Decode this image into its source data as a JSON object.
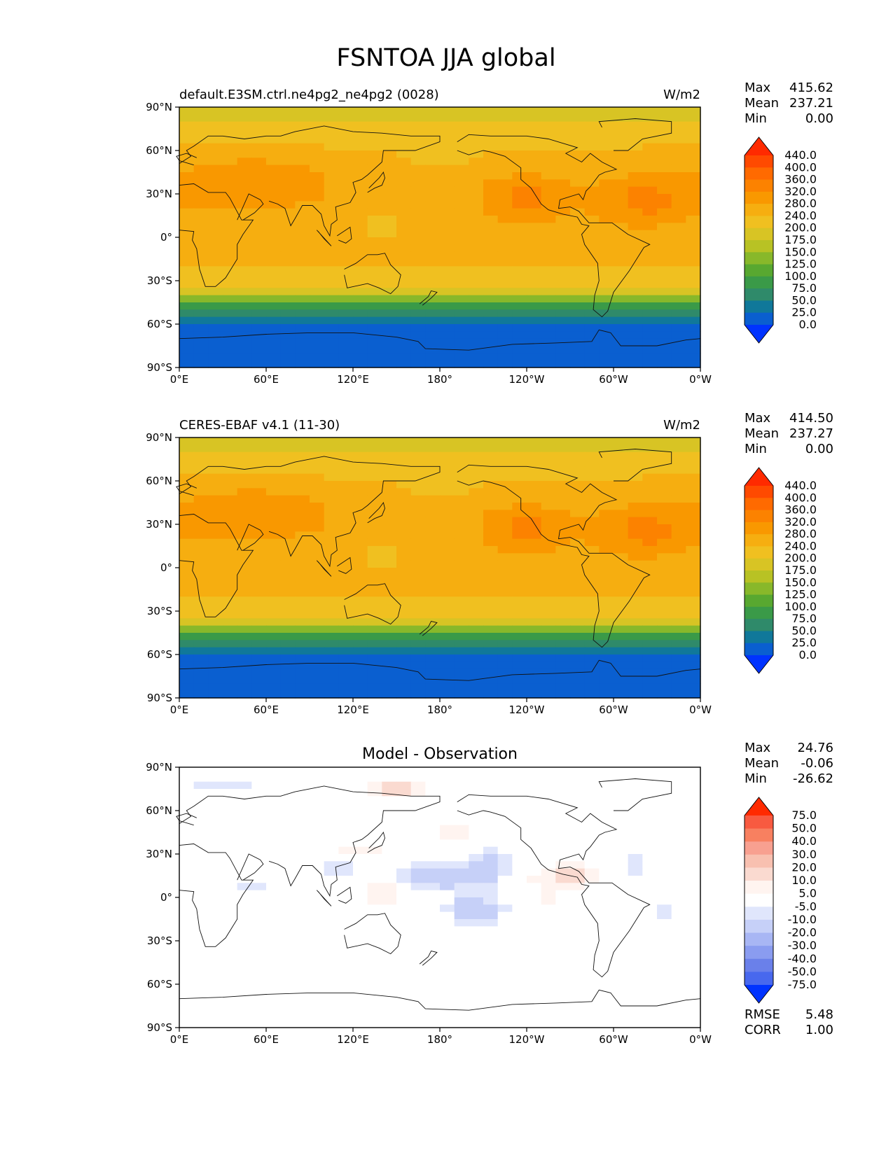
{
  "figure": {
    "title": "FSNTOA JJA global"
  },
  "chart_data": [
    {
      "type": "heatmap",
      "title": "",
      "left_label": "default.E3SM.ctrl.ne4pg2_ne4pg2 (0028)",
      "units": "W/m2",
      "xlim": [
        0,
        360
      ],
      "ylim": [
        -90,
        90
      ],
      "x_ticks": [
        "0°E",
        "60°E",
        "120°E",
        "180°",
        "120°W",
        "60°W",
        "0°W"
      ],
      "y_ticks": [
        "90°N",
        "60°N",
        "30°N",
        "0°",
        "30°S",
        "60°S",
        "90°S"
      ],
      "stats": [
        {
          "label": "Max",
          "value": "415.62"
        },
        {
          "label": "Mean",
          "value": "237.21"
        },
        {
          "label": "Min",
          "value": "0.00"
        }
      ],
      "colorbar": {
        "levels": [
          "440.0",
          "400.0",
          "360.0",
          "320.0",
          "280.0",
          "240.0",
          "200.0",
          "175.0",
          "150.0",
          "125.0",
          "100.0",
          "75.0",
          "50.0",
          "25.0",
          "0.0"
        ],
        "colors": [
          "#ff2a00",
          "#ff4a00",
          "#ff6a00",
          "#fc8200",
          "#f99800",
          "#f6ae10",
          "#f0c020",
          "#d8c424",
          "#b8c224",
          "#88b82a",
          "#58a830",
          "#3a9a48",
          "#2f8a6a",
          "#10789a",
          "#0a5fd0",
          "#0033ff"
        ]
      },
      "field": "reference",
      "amplitude": 1.0
    },
    {
      "type": "heatmap",
      "title": "",
      "left_label": "CERES-EBAF v4.1 (11-30)",
      "units": "W/m2",
      "xlim": [
        0,
        360
      ],
      "ylim": [
        -90,
        90
      ],
      "x_ticks": [
        "0°E",
        "60°E",
        "120°E",
        "180°",
        "120°W",
        "60°W",
        "0°W"
      ],
      "y_ticks": [
        "90°N",
        "60°N",
        "30°N",
        "0°",
        "30°S",
        "60°S",
        "90°S"
      ],
      "stats": [
        {
          "label": "Max",
          "value": "414.50"
        },
        {
          "label": "Mean",
          "value": "237.27"
        },
        {
          "label": "Min",
          "value": "0.00"
        }
      ],
      "colorbar": {
        "levels": [
          "440.0",
          "400.0",
          "360.0",
          "320.0",
          "280.0",
          "240.0",
          "200.0",
          "175.0",
          "150.0",
          "125.0",
          "100.0",
          "75.0",
          "50.0",
          "25.0",
          "0.0"
        ],
        "colors": [
          "#ff2a00",
          "#ff4a00",
          "#ff6a00",
          "#fc8200",
          "#f99800",
          "#f6ae10",
          "#f0c020",
          "#d8c424",
          "#b8c224",
          "#88b82a",
          "#58a830",
          "#3a9a48",
          "#2f8a6a",
          "#10789a",
          "#0a5fd0",
          "#0033ff"
        ]
      },
      "field": "reference",
      "amplitude": 1.0
    },
    {
      "type": "heatmap",
      "title": "Model - Observation",
      "left_label": "",
      "units": "",
      "xlim": [
        0,
        360
      ],
      "ylim": [
        -90,
        90
      ],
      "x_ticks": [
        "0°E",
        "60°E",
        "120°E",
        "180°",
        "120°W",
        "60°W",
        "0°W"
      ],
      "y_ticks": [
        "90°N",
        "60°N",
        "30°N",
        "0°",
        "30°S",
        "60°S",
        "90°S"
      ],
      "stats": [
        {
          "label": "Max",
          "value": "24.76"
        },
        {
          "label": "Mean",
          "value": "-0.06"
        },
        {
          "label": "Min",
          "value": "-26.62"
        }
      ],
      "extra_stats": [
        {
          "label": "RMSE",
          "value": "5.48"
        },
        {
          "label": "CORR",
          "value": "1.00"
        }
      ],
      "colorbar": {
        "levels": [
          "75.0",
          "50.0",
          "40.0",
          "30.0",
          "20.0",
          "10.0",
          "5.0",
          "-5.0",
          "-10.0",
          "-20.0",
          "-30.0",
          "-40.0",
          "-50.0",
          "-75.0"
        ],
        "colors": [
          "#ff2a00",
          "#f85a40",
          "#f88060",
          "#f8a090",
          "#f8c0b0",
          "#fadad0",
          "#fff4f0",
          "#ffffff",
          "#e0e6fc",
          "#c6d0f8",
          "#a8b6f4",
          "#8a9cf0",
          "#6a80ea",
          "#4868ee",
          "#0033ff"
        ]
      },
      "field": "difference",
      "amplitude": 1.0
    }
  ]
}
